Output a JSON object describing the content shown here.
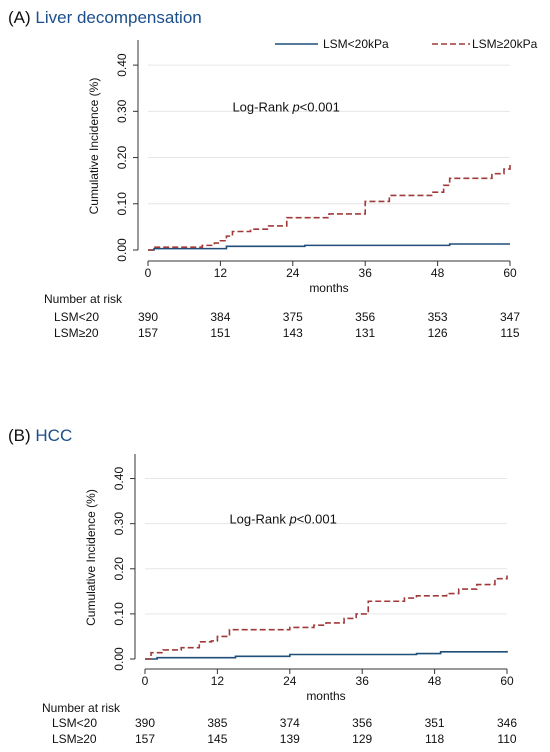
{
  "chart_data": [
    {
      "type": "line",
      "panel_label": "(A)",
      "title": "Liver decompensation",
      "xlabel": "months",
      "ylabel": "Cumulative Incidence (%)",
      "xlim": [
        0,
        60
      ],
      "ylim": [
        0,
        0.45
      ],
      "xticks": [
        0,
        12,
        24,
        36,
        48,
        60
      ],
      "yticks": [
        0.0,
        0.1,
        0.2,
        0.3,
        0.4
      ],
      "ytick_labels": [
        "0.00",
        "0.10",
        "0.20",
        "0.30",
        "0.40"
      ],
      "grid": true,
      "legend_position": "top",
      "annotation": {
        "prefix": "Log-Rank ",
        "italic": "p",
        "suffix": "<0.001"
      },
      "annotation_at": {
        "x": 14,
        "y": 0.3
      },
      "series": [
        {
          "name": "LSM<20kPa",
          "color": "#1f4e79",
          "dash": "solid",
          "x": [
            0,
            1,
            13,
            26,
            50,
            60
          ],
          "y": [
            0.0,
            0.003,
            0.008,
            0.01,
            0.013,
            0.013
          ]
        },
        {
          "name": "LSM≥20kPa",
          "color": "#a03a3a",
          "dash": "dashed",
          "x": [
            0,
            1,
            7,
            9,
            11,
            12,
            13,
            14,
            17,
            20,
            23,
            27,
            30,
            34,
            36,
            38,
            40,
            45,
            47,
            49,
            50,
            55,
            57,
            59,
            60
          ],
          "y": [
            0.0,
            0.006,
            0.006,
            0.01,
            0.015,
            0.02,
            0.03,
            0.04,
            0.045,
            0.052,
            0.07,
            0.07,
            0.078,
            0.078,
            0.105,
            0.105,
            0.118,
            0.118,
            0.125,
            0.14,
            0.155,
            0.155,
            0.165,
            0.175,
            0.185
          ]
        }
      ],
      "risk_table": {
        "header": "Number at risk",
        "times": [
          0,
          12,
          24,
          36,
          48,
          60
        ],
        "rows": [
          {
            "label": "LSM<20",
            "values": [
              "390",
              "384",
              "375",
              "356",
              "353",
              "347"
            ]
          },
          {
            "label": "LSM≥20",
            "values": [
              "157",
              "151",
              "143",
              "131",
              "126",
              "115"
            ]
          }
        ]
      }
    },
    {
      "type": "line",
      "panel_label": "(B)",
      "title": "HCC",
      "xlabel": "months",
      "ylabel": "Cumulative Incidence (%)",
      "xlim": [
        0,
        60
      ],
      "ylim": [
        0,
        0.45
      ],
      "xticks": [
        0,
        12,
        24,
        36,
        48,
        60
      ],
      "yticks": [
        0.0,
        0.1,
        0.2,
        0.3,
        0.4
      ],
      "ytick_labels": [
        "0.00",
        "0.10",
        "0.20",
        "0.30",
        "0.40"
      ],
      "grid": true,
      "legend_position": "none",
      "annotation": {
        "prefix": "Log-Rank ",
        "italic": "p",
        "suffix": "<0.001"
      },
      "annotation_at": {
        "x": 14,
        "y": 0.3
      },
      "series": [
        {
          "name": "LSM<20kPa",
          "color": "#1f4e79",
          "dash": "solid",
          "x": [
            0,
            2,
            15,
            24,
            45,
            49,
            60
          ],
          "y": [
            0.0,
            0.003,
            0.006,
            0.01,
            0.012,
            0.016,
            0.018
          ]
        },
        {
          "name": "LSM≥20kPa",
          "color": "#a03a3a",
          "dash": "dashed",
          "x": [
            0,
            1,
            3,
            6,
            9,
            11,
            12,
            14,
            22,
            24,
            28,
            30,
            33,
            35,
            37,
            41,
            43,
            45,
            50,
            52,
            55,
            58,
            60
          ],
          "y": [
            0.0,
            0.014,
            0.02,
            0.025,
            0.038,
            0.04,
            0.05,
            0.065,
            0.065,
            0.07,
            0.075,
            0.08,
            0.09,
            0.1,
            0.128,
            0.128,
            0.135,
            0.14,
            0.145,
            0.155,
            0.165,
            0.178,
            0.185
          ]
        }
      ],
      "risk_table": {
        "header": "Number at risk",
        "times": [
          0,
          12,
          24,
          36,
          48,
          60
        ],
        "rows": [
          {
            "label": "LSM<20",
            "values": [
              "390",
              "385",
              "374",
              "356",
              "351",
              "346"
            ]
          },
          {
            "label": "LSM≥20",
            "values": [
              "157",
              "145",
              "139",
              "129",
              "118",
              "110"
            ]
          }
        ]
      }
    }
  ]
}
